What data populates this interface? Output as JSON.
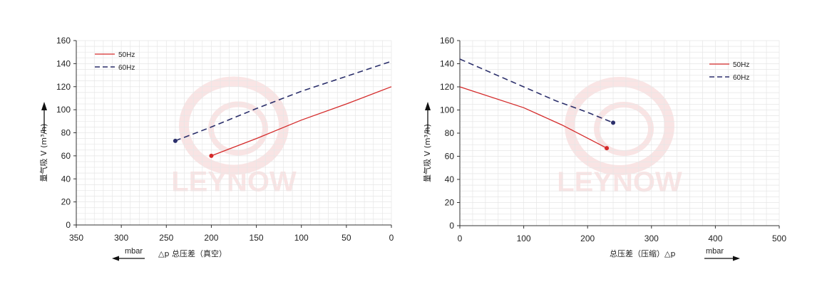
{
  "chart_data": [
    {
      "type": "line",
      "x_reversed": true,
      "xlim": [
        0,
        350
      ],
      "ylim": [
        0,
        160
      ],
      "xticks": [
        350,
        300,
        250,
        200,
        150,
        100,
        50,
        0
      ],
      "yticks": [
        0,
        20,
        40,
        60,
        80,
        100,
        120,
        140,
        160
      ],
      "ylabel": "量气吸 V (m³/h)",
      "xlabel": "△p 总压差（真空）",
      "x_unit": "mbar",
      "legend_position": "top-left",
      "grid": true,
      "series": [
        {
          "name": "50Hz",
          "color": "#d42a2a",
          "dash": false,
          "x": [
            200,
            150,
            100,
            50,
            0
          ],
          "y": [
            60,
            75,
            91,
            105,
            120
          ]
        },
        {
          "name": "60Hz",
          "color": "#2b2f6b",
          "dash": true,
          "x": [
            240,
            200,
            150,
            100,
            50,
            0
          ],
          "y": [
            73,
            85,
            101,
            116,
            129,
            142
          ]
        }
      ]
    },
    {
      "type": "line",
      "x_reversed": false,
      "xlim": [
        0,
        500
      ],
      "ylim": [
        0,
        160
      ],
      "xticks": [
        0,
        100,
        200,
        300,
        400,
        500
      ],
      "yticks": [
        0,
        20,
        40,
        60,
        80,
        100,
        120,
        140,
        160
      ],
      "ylabel": "量气吸 V (m³/h)",
      "xlabel": "总压差（压缩）△p",
      "x_unit": "mbar",
      "legend_position": "top-right",
      "grid": true,
      "series": [
        {
          "name": "50Hz",
          "color": "#d42a2a",
          "dash": false,
          "x": [
            0,
            100,
            160,
            230
          ],
          "y": [
            120,
            102,
            87,
            67
          ]
        },
        {
          "name": "60Hz",
          "color": "#2b2f6b",
          "dash": true,
          "x": [
            0,
            100,
            150,
            200,
            240
          ],
          "y": [
            144,
            120,
            108,
            98,
            89
          ]
        }
      ]
    }
  ],
  "watermark": {
    "text": "LEYNOW"
  }
}
